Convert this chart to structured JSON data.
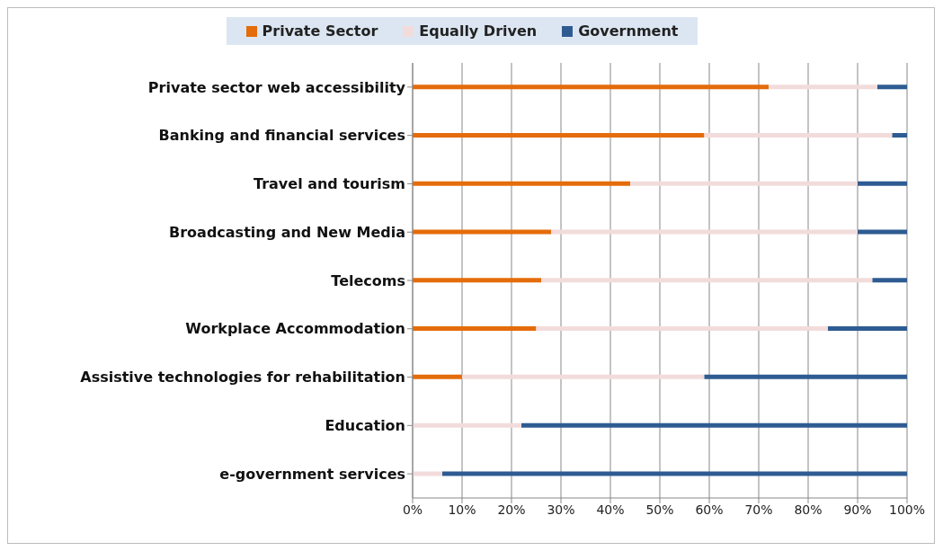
{
  "chart_data": {
    "type": "bar",
    "orientation": "horizontal",
    "stacked": true,
    "categories": [
      "Private sector web accessibility",
      "Banking and financial services",
      "Travel and tourism",
      "Broadcasting and New Media",
      "Telecoms",
      "Workplace Accommodation",
      "Assistive technologies for rehabilitation",
      "Education",
      "e-government services"
    ],
    "series": [
      {
        "name": "Private Sector",
        "color": "#e46c0a",
        "values": [
          72,
          59,
          44,
          28,
          26,
          25,
          10,
          0,
          0
        ]
      },
      {
        "name": "Equally Driven",
        "color": "#f2dcdb",
        "values": [
          22,
          38,
          46,
          62,
          67,
          59,
          49,
          22,
          6
        ]
      },
      {
        "name": "Government",
        "color": "#2e5c92",
        "values": [
          6,
          3,
          10,
          10,
          7,
          16,
          41,
          78,
          94
        ]
      }
    ],
    "xlim": [
      0,
      100
    ],
    "xticks": [
      {
        "value": 0,
        "label": "0%"
      },
      {
        "value": 10,
        "label": "10%"
      },
      {
        "value": 20,
        "label": "20%"
      },
      {
        "value": 30,
        "label": "30%"
      },
      {
        "value": 40,
        "label": "40%"
      },
      {
        "value": 50,
        "label": "50%"
      },
      {
        "value": 60,
        "label": "60%"
      },
      {
        "value": 70,
        "label": "70%"
      },
      {
        "value": 80,
        "label": "80%"
      },
      {
        "value": 90,
        "label": "90%"
      },
      {
        "value": 100,
        "label": "100%"
      }
    ],
    "grid": "x",
    "legend": "top"
  }
}
